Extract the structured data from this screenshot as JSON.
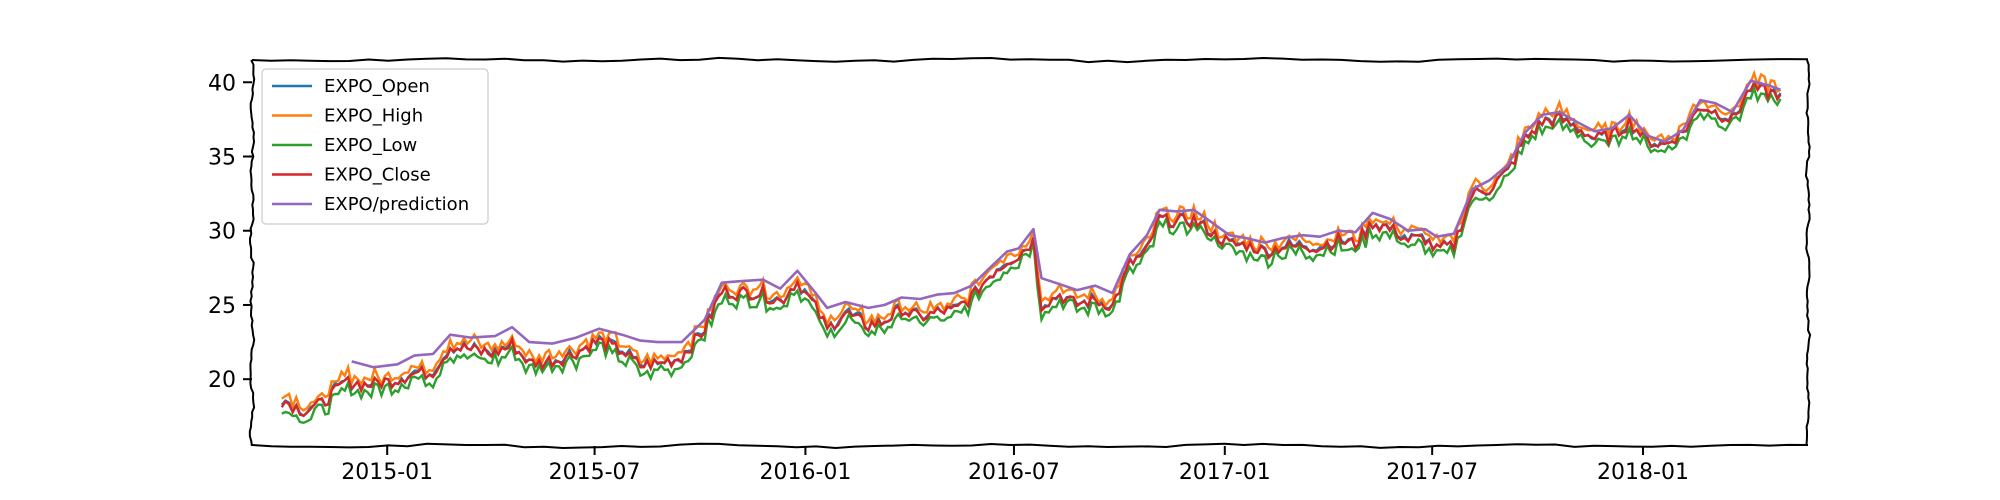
{
  "chart_data": {
    "type": "line",
    "title": "",
    "xlabel": "",
    "ylabel": "",
    "xlim": [
      "2014-09-05",
      "2018-05-25"
    ],
    "ylim": [
      15.5,
      41.5
    ],
    "x_ticks": [
      "2015-01",
      "2015-07",
      "2016-01",
      "2016-07",
      "2017-01",
      "2017-07",
      "2018-01"
    ],
    "y_ticks": [
      20,
      25,
      30,
      35,
      40
    ],
    "grid": false,
    "legend_position": "top-left",
    "colors": {
      "EXPO_Open": "#1f77b4",
      "EXPO_High": "#ff7f0e",
      "EXPO_Low": "#2ca02c",
      "EXPO_Close": "#d62728",
      "EXPO/prediction": "#9467bd"
    },
    "close_series": {
      "x": [
        "2014-10-01",
        "2014-10-20",
        "2014-11-05",
        "2014-11-25",
        "2014-12-15",
        "2015-01-05",
        "2015-01-25",
        "2015-02-10",
        "2015-02-25",
        "2015-03-15",
        "2015-04-05",
        "2015-04-20",
        "2015-05-05",
        "2015-05-25",
        "2015-06-15",
        "2015-07-05",
        "2015-07-25",
        "2015-08-10",
        "2015-08-25",
        "2015-09-15",
        "2015-10-05",
        "2015-10-20",
        "2015-11-05",
        "2015-11-25",
        "2015-12-10",
        "2015-12-25",
        "2016-01-10",
        "2016-01-20",
        "2016-02-05",
        "2016-02-25",
        "2016-03-10",
        "2016-03-25",
        "2016-04-10",
        "2016-04-25",
        "2016-05-10",
        "2016-05-25",
        "2016-06-10",
        "2016-06-25",
        "2016-07-05",
        "2016-07-18",
        "2016-07-25",
        "2016-08-10",
        "2016-08-25",
        "2016-09-10",
        "2016-09-25",
        "2016-10-10",
        "2016-10-25",
        "2016-11-05",
        "2016-11-20",
        "2016-12-05",
        "2016-12-20",
        "2017-01-05",
        "2017-01-20",
        "2017-02-05",
        "2017-02-20",
        "2017-03-10",
        "2017-03-25",
        "2017-04-10",
        "2017-04-25",
        "2017-05-10",
        "2017-05-25",
        "2017-06-10",
        "2017-06-25",
        "2017-07-05",
        "2017-07-20",
        "2017-08-05",
        "2017-08-20",
        "2017-09-05",
        "2017-09-20",
        "2017-10-05",
        "2017-10-20",
        "2017-11-05",
        "2017-11-20",
        "2017-12-05",
        "2017-12-20",
        "2018-01-05",
        "2018-01-20",
        "2018-02-05",
        "2018-02-20",
        "2018-03-05",
        "2018-03-20",
        "2018-04-05",
        "2018-04-20",
        "2018-05-01"
      ],
      "y": [
        18.6,
        17.9,
        18.3,
        19.8,
        19.6,
        19.9,
        20.4,
        20.5,
        22.2,
        22.0,
        21.7,
        22.3,
        21.1,
        21.2,
        21.8,
        22.6,
        21.9,
        20.9,
        21.0,
        21.5,
        23.4,
        25.9,
        25.8,
        25.8,
        25.2,
        26.6,
        24.8,
        23.3,
        24.5,
        23.6,
        23.9,
        24.7,
        24.1,
        24.5,
        24.6,
        25.5,
        27.0,
        28.0,
        28.3,
        29.4,
        25.0,
        25.7,
        25.0,
        25.3,
        24.9,
        27.7,
        28.6,
        30.8,
        30.6,
        30.7,
        29.9,
        29.1,
        29.0,
        28.6,
        28.9,
        29.0,
        28.9,
        29.4,
        29.1,
        30.5,
        30.1,
        29.4,
        29.5,
        28.7,
        29.0,
        32.5,
        32.8,
        34.0,
        36.2,
        37.3,
        37.6,
        36.9,
        36.2,
        36.4,
        37.3,
        36.0,
        35.8,
        36.6,
        38.4,
        38.0,
        37.5,
        39.6,
        39.3,
        39.2
      ]
    },
    "prediction_series": {
      "x": [
        "2014-12-01",
        "2014-12-20",
        "2015-01-10",
        "2015-01-25",
        "2015-02-10",
        "2015-02-25",
        "2015-03-15",
        "2015-04-05",
        "2015-04-20",
        "2015-05-05",
        "2015-05-25",
        "2015-06-15",
        "2015-07-05",
        "2015-07-25",
        "2015-08-10",
        "2015-08-25",
        "2015-09-15",
        "2015-10-05",
        "2015-10-20",
        "2015-11-05",
        "2015-11-25",
        "2015-12-10",
        "2015-12-25",
        "2016-01-10",
        "2016-01-20",
        "2016-02-05",
        "2016-02-25",
        "2016-03-10",
        "2016-03-25",
        "2016-04-10",
        "2016-04-25",
        "2016-05-10",
        "2016-05-25",
        "2016-06-10",
        "2016-06-25",
        "2016-07-05",
        "2016-07-18",
        "2016-07-25",
        "2016-08-10",
        "2016-08-25",
        "2016-09-10",
        "2016-09-25",
        "2016-10-10",
        "2016-10-25",
        "2016-11-05",
        "2016-11-20",
        "2016-12-05",
        "2016-12-20",
        "2017-01-05",
        "2017-01-20",
        "2017-02-05",
        "2017-02-20",
        "2017-03-10",
        "2017-03-25",
        "2017-04-10",
        "2017-04-25",
        "2017-05-10",
        "2017-05-25",
        "2017-06-10",
        "2017-06-25",
        "2017-07-05",
        "2017-07-20",
        "2017-08-05",
        "2017-08-20",
        "2017-09-05",
        "2017-09-20",
        "2017-10-05",
        "2017-10-20",
        "2017-11-05",
        "2017-11-20",
        "2017-12-05",
        "2017-12-20",
        "2018-01-05",
        "2018-01-20",
        "2018-02-05",
        "2018-02-20",
        "2018-03-05",
        "2018-03-20",
        "2018-04-05",
        "2018-04-20",
        "2018-05-01"
      ],
      "y": [
        21.2,
        20.8,
        21.0,
        21.6,
        21.7,
        23.0,
        22.8,
        22.9,
        23.5,
        22.5,
        22.4,
        22.8,
        23.4,
        23.0,
        22.6,
        22.5,
        22.5,
        24.0,
        26.5,
        26.6,
        26.7,
        26.1,
        27.3,
        25.8,
        24.8,
        25.2,
        24.8,
        25.0,
        25.5,
        25.4,
        25.7,
        25.8,
        26.3,
        27.5,
        28.6,
        28.8,
        30.1,
        26.8,
        26.4,
        26.0,
        26.3,
        25.8,
        28.4,
        29.7,
        31.4,
        31.3,
        31.4,
        30.6,
        29.7,
        29.5,
        29.2,
        29.5,
        29.7,
        29.6,
        30.0,
        29.9,
        31.2,
        30.8,
        30.0,
        30.1,
        29.6,
        29.8,
        32.8,
        33.4,
        34.4,
        36.6,
        37.8,
        38.0,
        37.3,
        36.7,
        36.9,
        37.8,
        36.4,
        36.0,
        36.8,
        38.8,
        38.6,
        38.0,
        40.1,
        39.8,
        39.5
      ]
    },
    "legend": [
      {
        "name": "EXPO_Open",
        "color": "#1f77b4"
      },
      {
        "name": "EXPO_High",
        "color": "#ff7f0e"
      },
      {
        "name": "EXPO_Low",
        "color": "#2ca02c"
      },
      {
        "name": "EXPO_Close",
        "color": "#d62728"
      },
      {
        "name": "EXPO/prediction",
        "color": "#9467bd"
      }
    ]
  }
}
